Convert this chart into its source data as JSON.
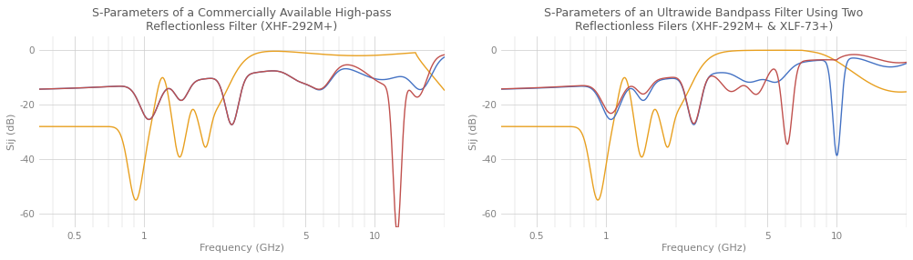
{
  "title1": "S-Parameters of a Commercially Available High-pass\nReflectionless Filter (XHF-292M+)",
  "title2": "S-Parameters of an Ultrawide Bandpass Filter Using Two\nReflectionless Filers (XHF-292M+ & XLF-73+)",
  "xlabel": "Frequency (GHz)",
  "ylabel": "Sij (dB)",
  "xlim": [
    0.35,
    20
  ],
  "ylim": [
    -65,
    5
  ],
  "yticks": [
    0,
    -20,
    -40,
    -60
  ],
  "xticks": [
    0.5,
    1,
    5,
    10
  ],
  "colors": {
    "blue": "#4472C4",
    "red": "#C0504D",
    "orange": "#E8A020"
  },
  "background": "#ffffff",
  "grid_color": "#cccccc",
  "title_color": "#595959",
  "axis_color": "#808080"
}
